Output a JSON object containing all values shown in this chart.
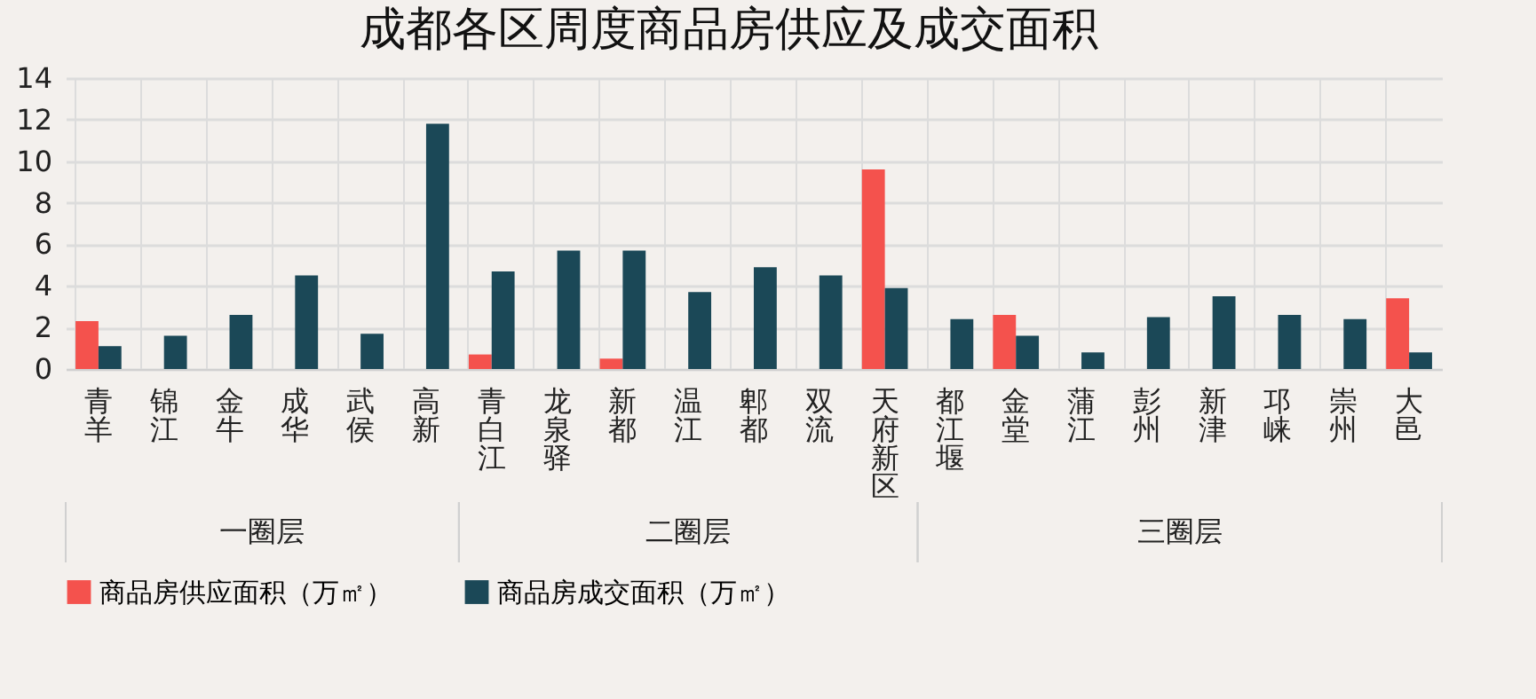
{
  "chart_data": {
    "type": "bar",
    "title": "成都各区周度商品房供应及成交面积",
    "categories": [
      "青羊",
      "锦江",
      "金牛",
      "成华",
      "武侯",
      "高新",
      "青白江",
      "龙泉驿",
      "新都",
      "温江",
      "郫都",
      "双流",
      "天府新区",
      "都江堰",
      "金堂",
      "蒲江",
      "彭州",
      "新津",
      "邛崃",
      "崇州",
      "大邑"
    ],
    "series": [
      {
        "name": "商品房供应面积（万㎡）",
        "color": "#f4524d",
        "values": [
          2.3,
          null,
          null,
          null,
          null,
          null,
          0.7,
          null,
          0.5,
          null,
          null,
          null,
          9.6,
          null,
          2.6,
          null,
          null,
          null,
          null,
          null,
          3.4
        ]
      },
      {
        "name": "商品房成交面积（万㎡）",
        "color": "#1b4857",
        "values": [
          1.1,
          1.6,
          2.6,
          4.5,
          1.7,
          11.8,
          4.7,
          5.7,
          5.7,
          3.7,
          4.9,
          4.5,
          3.9,
          2.4,
          1.6,
          0.8,
          2.5,
          3.5,
          2.6,
          2.4,
          0.8
        ]
      }
    ],
    "annotations": [
      "一圈层",
      "二圈层",
      "三圈层"
    ],
    "ylim": [
      0,
      14
    ],
    "yticks": [
      0,
      2,
      4,
      6,
      8,
      10,
      12,
      14
    ],
    "grid": true,
    "legend": "bottom"
  }
}
